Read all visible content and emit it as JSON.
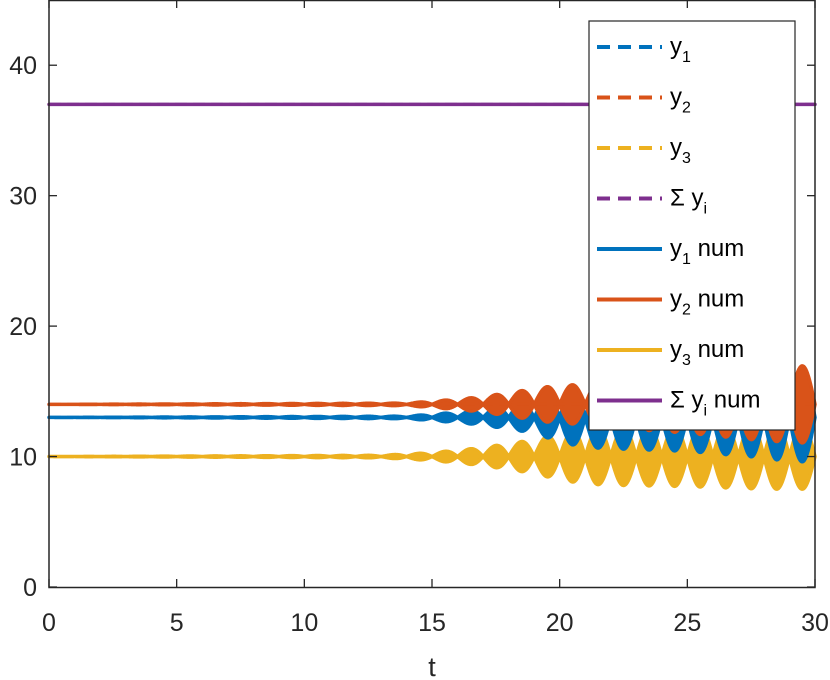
{
  "chart_data": {
    "type": "line",
    "title": "",
    "xlabel": "t",
    "ylabel": "",
    "xlim": [
      0,
      30
    ],
    "ylim": [
      0,
      45
    ],
    "xticks": [
      0,
      5,
      10,
      15,
      20,
      25,
      30
    ],
    "yticks": [
      0,
      10,
      20,
      30,
      40
    ],
    "grid": false,
    "legend_position": "top-right",
    "series": [
      {
        "name": "y_1",
        "legend": {
          "base": "y",
          "sub": "1",
          "suffix": ""
        },
        "style": "dashed",
        "color": "#0072BD",
        "baseline": 13,
        "envelope": [
          [
            0,
            0
          ],
          [
            14,
            0.1
          ],
          [
            16,
            0.4
          ],
          [
            17,
            0.6
          ],
          [
            18,
            0.9
          ],
          [
            19,
            1.2
          ],
          [
            20,
            1.9
          ],
          [
            21,
            2.3
          ],
          [
            22,
            2.4
          ],
          [
            25,
            2.6
          ],
          [
            28,
            3.1
          ],
          [
            29,
            3.4
          ],
          [
            30,
            3.4
          ]
        ]
      },
      {
        "name": "y_2",
        "legend": {
          "base": "y",
          "sub": "2",
          "suffix": ""
        },
        "style": "dashed",
        "color": "#D95319",
        "baseline": 14,
        "envelope": [
          [
            0,
            0
          ],
          [
            14,
            0.1
          ],
          [
            16,
            0.4
          ],
          [
            17,
            0.6
          ],
          [
            18,
            0.9
          ],
          [
            19,
            1.2
          ],
          [
            20,
            1.5
          ],
          [
            21,
            1.5
          ],
          [
            22,
            1.8
          ],
          [
            25,
            2.2
          ],
          [
            28,
            2.8
          ],
          [
            30,
            3.0
          ]
        ]
      },
      {
        "name": "y_3",
        "legend": {
          "base": "y",
          "sub": "3",
          "suffix": ""
        },
        "style": "dashed",
        "color": "#EDB120",
        "baseline": 10,
        "envelope": [
          [
            0,
            0
          ],
          [
            13,
            0.1
          ],
          [
            15,
            0.3
          ],
          [
            16,
            0.5
          ],
          [
            17,
            0.7
          ],
          [
            18,
            1.0
          ],
          [
            19,
            1.3
          ],
          [
            20,
            1.8
          ],
          [
            21,
            2.1
          ],
          [
            22,
            2.2
          ],
          [
            25,
            2.3
          ],
          [
            28,
            2.5
          ],
          [
            30,
            2.5
          ]
        ]
      },
      {
        "name": "Σ y_i",
        "legend": {
          "base": "Σ y",
          "sub": "i",
          "suffix": ""
        },
        "style": "dashed",
        "color": "#7E2F8E",
        "baseline": 37,
        "envelope": [
          [
            0,
            0
          ],
          [
            30,
            0
          ]
        ]
      },
      {
        "name": "y_1 num",
        "legend": {
          "base": "y",
          "sub": "1",
          "suffix": " num"
        },
        "style": "solid",
        "color": "#0072BD"
      },
      {
        "name": "y_2 num",
        "legend": {
          "base": "y",
          "sub": "2",
          "suffix": " num"
        },
        "style": "solid",
        "color": "#D95319"
      },
      {
        "name": "y_3 num",
        "legend": {
          "base": "y",
          "sub": "3",
          "suffix": " num"
        },
        "style": "solid",
        "color": "#EDB120"
      },
      {
        "name": "Σ y_i num",
        "legend": {
          "base": "Σ y",
          "sub": "i",
          "suffix": " num"
        },
        "style": "solid",
        "color": "#7E2F8E"
      }
    ],
    "oscillation_period": 1.0
  }
}
